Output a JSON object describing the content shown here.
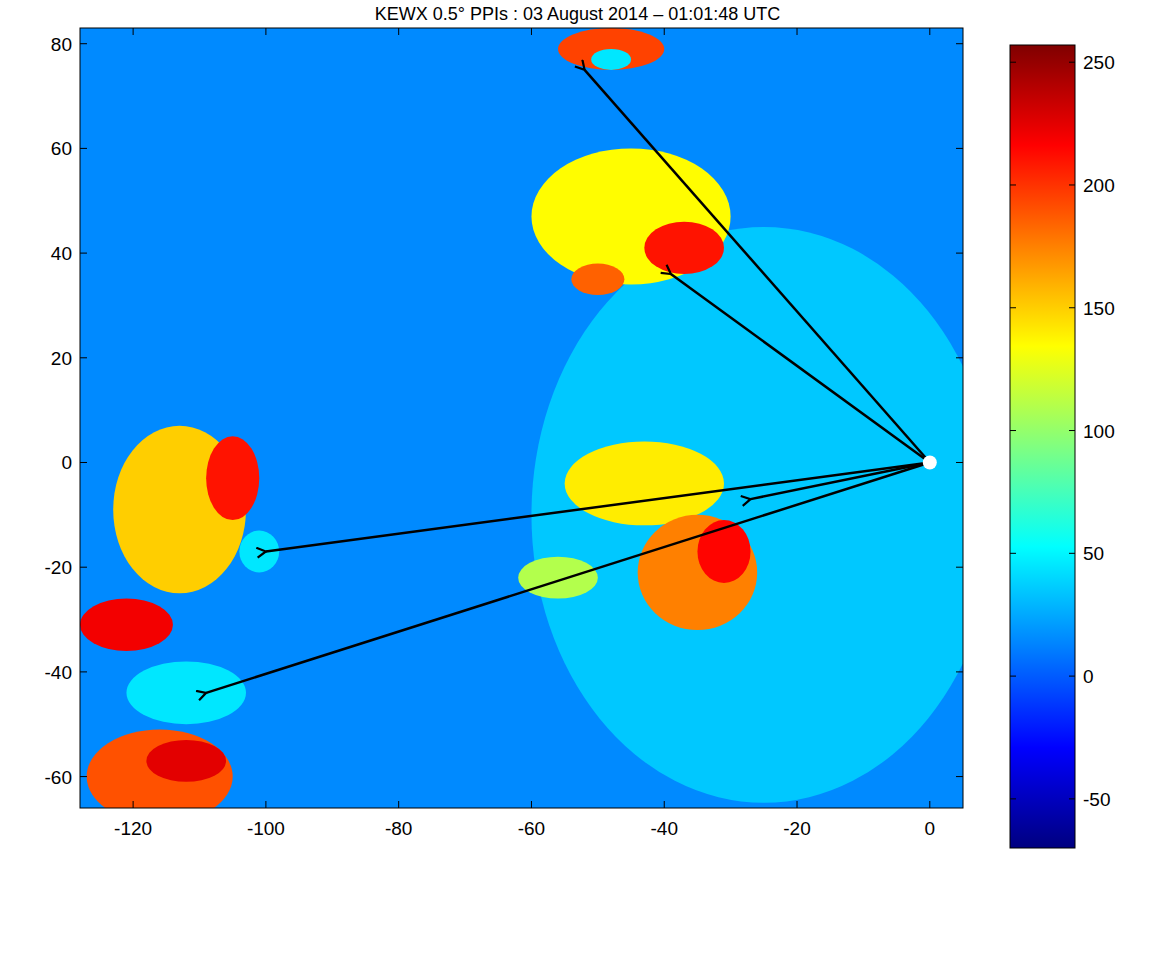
{
  "chart_data": {
    "type": "heatmap",
    "title": "KEWX 0.5° PPIs : 03 August 2014 – 01:01:48 UTC",
    "xlim": [
      -128,
      5
    ],
    "xticks": [
      -120,
      -100,
      -80,
      -60,
      -40,
      -20,
      0
    ],
    "ylim": [
      -66,
      83
    ],
    "yticks": [
      -60,
      -40,
      -20,
      0,
      20,
      40,
      60,
      80
    ],
    "colorbar": {
      "range": [
        -70,
        257
      ],
      "ticks": [
        -50,
        0,
        50,
        100,
        150,
        200,
        250
      ]
    },
    "background_value": 15,
    "radar": {
      "x": 0,
      "y": 0
    },
    "echoes": [
      {
        "x": -25,
        "y": -10,
        "rx": 35,
        "ry": 55,
        "value": 35
      },
      {
        "x": -48,
        "y": 79,
        "rx": 8,
        "ry": 4,
        "value": 195
      },
      {
        "x": -48,
        "y": 77,
        "rx": 3,
        "ry": 2,
        "value": 45
      },
      {
        "x": -45,
        "y": 47,
        "rx": 15,
        "ry": 13,
        "value": 135
      },
      {
        "x": -37,
        "y": 41,
        "rx": 6,
        "ry": 5,
        "value": 210
      },
      {
        "x": -50,
        "y": 35,
        "rx": 4,
        "ry": 3,
        "value": 185
      },
      {
        "x": -43,
        "y": -4,
        "rx": 12,
        "ry": 8,
        "value": 140
      },
      {
        "x": -35,
        "y": -21,
        "rx": 9,
        "ry": 11,
        "value": 175
      },
      {
        "x": -31,
        "y": -17,
        "rx": 4,
        "ry": 6,
        "value": 215
      },
      {
        "x": -56,
        "y": -22,
        "rx": 6,
        "ry": 4,
        "value": 110
      },
      {
        "x": -113,
        "y": -9,
        "rx": 10,
        "ry": 16,
        "value": 150
      },
      {
        "x": -105,
        "y": -3,
        "rx": 4,
        "ry": 8,
        "value": 210
      },
      {
        "x": -101,
        "y": -17,
        "rx": 3,
        "ry": 4,
        "value": 45
      },
      {
        "x": -121,
        "y": -31,
        "rx": 7,
        "ry": 5,
        "value": 220
      },
      {
        "x": -112,
        "y": -44,
        "rx": 9,
        "ry": 6,
        "value": 45
      },
      {
        "x": -116,
        "y": -60,
        "rx": 11,
        "ry": 9,
        "value": 190
      },
      {
        "x": -112,
        "y": -57,
        "rx": 6,
        "ry": 4,
        "value": 225
      }
    ],
    "arrows": [
      {
        "x": -52,
        "y": 75
      },
      {
        "x": -39,
        "y": 36
      },
      {
        "x": -100,
        "y": -17
      },
      {
        "x": -27,
        "y": -7
      },
      {
        "x": -109,
        "y": -44
      }
    ]
  }
}
